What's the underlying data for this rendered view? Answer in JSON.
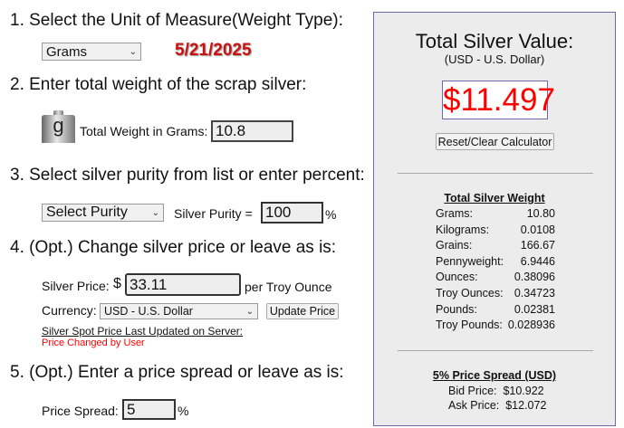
{
  "step1": {
    "heading": "1. Select the Unit of Measure(Weight Type):",
    "unit": "Grams",
    "date": "5/21/2025"
  },
  "step2": {
    "heading": "2. Enter total weight of the scrap silver:",
    "icon_letter": "g",
    "label": "Total Weight in Grams:",
    "value": "10.8"
  },
  "step3": {
    "heading": "3. Select silver purity from list or enter percent:",
    "purity_select": "Select Purity",
    "label": "Silver Purity =",
    "value": "100",
    "unit": "%"
  },
  "step4": {
    "heading": "4. (Opt.) Change silver price or leave as is:",
    "price_label": "Silver Price:",
    "dollar": "$",
    "price": "33.11",
    "per": "per Troy Ounce",
    "currency_label": "Currency:",
    "currency": "USD - U.S. Dollar",
    "update_button": "Update Price",
    "spot_label": "Silver Spot Price Last Updated on Server:",
    "spot_status": "Price Changed by User"
  },
  "step5": {
    "heading": "5. (Opt.) Enter a price spread or leave as is:",
    "label": "Price Spread:",
    "value": "5",
    "unit": "%"
  },
  "result": {
    "title": "Total Silver Value:",
    "currency": "(USD - U.S. Dollar)",
    "value": "$11.497",
    "reset_button": "Reset/Clear Calculator",
    "weight_title": "Total Silver Weight",
    "weights": [
      {
        "label": "Grams:",
        "value": "10.80"
      },
      {
        "label": "Kilograms:",
        "value": "0.0108"
      },
      {
        "label": "Grains:",
        "value": "166.67"
      },
      {
        "label": "Pennyweight:",
        "value": "6.9446"
      },
      {
        "label": "Ounces:",
        "value": "0.38096"
      },
      {
        "label": "Troy Ounces:",
        "value": "0.34723"
      },
      {
        "label": "Pounds:",
        "value": "0.02381"
      },
      {
        "label": "Troy Pounds:",
        "value": "0.028936"
      }
    ],
    "spread_title": "5% Price Spread (USD)",
    "bid_label": "Bid Price:",
    "bid": "$10.922",
    "ask_label": "Ask Price:",
    "ask": "$12.072"
  },
  "colors": {
    "accent_red": "#ff0000",
    "date_red": "#cc1111",
    "panel_bg": "#ececec",
    "panel_border": "#6a6aae"
  }
}
